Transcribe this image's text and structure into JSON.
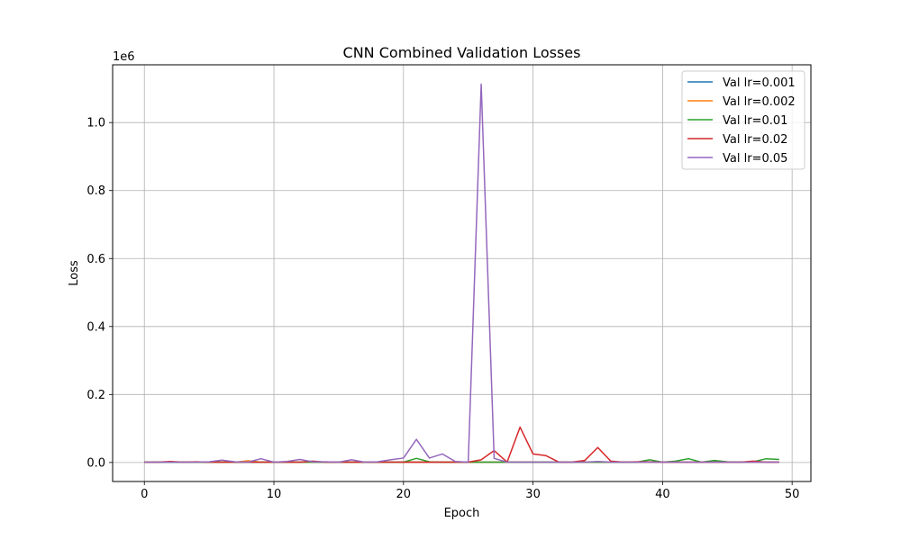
{
  "chart_data": {
    "type": "line",
    "title": "CNN Combined Validation Losses",
    "xlabel": "Epoch",
    "ylabel": "Loss",
    "y_offset_label": "1e6",
    "xlim": [
      -2.45,
      51.45
    ],
    "ylim": [
      -0.056,
      1.17
    ],
    "x_ticks": [
      0,
      10,
      20,
      30,
      40,
      50
    ],
    "y_ticks": [
      0.0,
      0.2,
      0.4,
      0.6,
      0.8,
      1.0
    ],
    "y_tick_labels": [
      "0.0",
      "0.2",
      "0.4",
      "0.6",
      "0.8",
      "1.0"
    ],
    "grid": true,
    "legend_position": "top-right",
    "x": [
      0,
      1,
      2,
      3,
      4,
      5,
      6,
      7,
      8,
      9,
      10,
      11,
      12,
      13,
      14,
      15,
      16,
      17,
      18,
      19,
      20,
      21,
      22,
      23,
      24,
      25,
      26,
      27,
      28,
      29,
      30,
      31,
      32,
      33,
      34,
      35,
      36,
      37,
      38,
      39,
      40,
      41,
      42,
      43,
      44,
      45,
      46,
      47,
      48,
      49
    ],
    "series": [
      {
        "name": "Val lr=0.001",
        "color": "#1f77b4",
        "values": [
          0.001,
          0.001,
          0.001,
          0.001,
          0.001,
          0.001,
          0.001,
          0.001,
          0.001,
          0.001,
          0.001,
          0.001,
          0.001,
          0.001,
          0.001,
          0.001,
          0.001,
          0.001,
          0.001,
          0.001,
          0.001,
          0.001,
          0.001,
          0.001,
          0.001,
          0.001,
          0.001,
          0.001,
          0.001,
          0.001,
          0.001,
          0.001,
          0.001,
          0.001,
          0.001,
          0.001,
          0.001,
          0.001,
          0.001,
          0.001,
          0.001,
          0.001,
          0.001,
          0.001,
          0.001,
          0.001,
          0.001,
          0.001,
          0.001,
          0.001
        ]
      },
      {
        "name": "Val lr=0.002",
        "color": "#ff7f0e",
        "values": [
          0.001,
          0.001,
          0.002,
          0.001,
          0.001,
          0.001,
          0.001,
          0.001,
          0.005,
          0.001,
          0.001,
          0.001,
          0.001,
          0.001,
          0.001,
          0.001,
          0.001,
          0.001,
          0.001,
          0.001,
          0.001,
          0.001,
          0.001,
          0.001,
          0.001,
          0.001,
          0.001,
          0.001,
          0.001,
          0.001,
          0.001,
          0.001,
          0.001,
          0.001,
          0.001,
          0.001,
          0.001,
          0.001,
          0.001,
          0.001,
          0.001,
          0.001,
          0.001,
          0.001,
          0.001,
          0.001,
          0.001,
          0.001,
          0.001,
          0.001
        ]
      },
      {
        "name": "Val lr=0.01",
        "color": "#2ca02c",
        "values": [
          0.001,
          0.001,
          0.001,
          0.001,
          0.001,
          0.001,
          0.001,
          0.001,
          0.001,
          0.001,
          0.001,
          0.001,
          0.001,
          0.001,
          0.001,
          0.001,
          0.001,
          0.001,
          0.001,
          0.001,
          0.001,
          0.012,
          0.002,
          0.001,
          0.001,
          0.001,
          0.001,
          0.001,
          0.001,
          0.001,
          0.001,
          0.001,
          0.001,
          0.001,
          0.001,
          0.001,
          0.001,
          0.001,
          0.001,
          0.008,
          0.001,
          0.004,
          0.011,
          0.001,
          0.006,
          0.002,
          0.001,
          0.002,
          0.011,
          0.009
        ]
      },
      {
        "name": "Val lr=0.02",
        "color": "#d62728",
        "values": [
          0.001,
          0.001,
          0.003,
          0.001,
          0.002,
          0.001,
          0.001,
          0.001,
          0.001,
          0.001,
          0.001,
          0.001,
          0.001,
          0.004,
          0.001,
          0.001,
          0.001,
          0.001,
          0.001,
          0.001,
          0.001,
          0.001,
          0.001,
          0.001,
          0.001,
          0.001,
          0.008,
          0.035,
          0.001,
          0.104,
          0.025,
          0.02,
          0.001,
          0.001,
          0.006,
          0.044,
          0.004,
          0.001,
          0.002,
          0.002,
          0.001,
          0.001,
          0.001,
          0.001,
          0.001,
          0.001,
          0.001,
          0.004,
          0.001,
          0.001
        ]
      },
      {
        "name": "Val lr=0.05",
        "color": "#9467bd",
        "values": [
          0.001,
          0.001,
          0.001,
          0.001,
          0.001,
          0.002,
          0.007,
          0.002,
          0.001,
          0.011,
          0.001,
          0.003,
          0.009,
          0.002,
          0.002,
          0.001,
          0.008,
          0.001,
          0.002,
          0.008,
          0.013,
          0.068,
          0.013,
          0.025,
          0.003,
          0.001,
          1.113,
          0.012,
          0.001,
          0.001,
          0.001,
          0.001,
          0.001,
          0.001,
          0.001,
          0.003,
          0.001,
          0.001,
          0.001,
          0.001,
          0.001,
          0.001,
          0.001,
          0.001,
          0.001,
          0.001,
          0.001,
          0.001,
          0.001,
          0.001
        ]
      }
    ]
  }
}
